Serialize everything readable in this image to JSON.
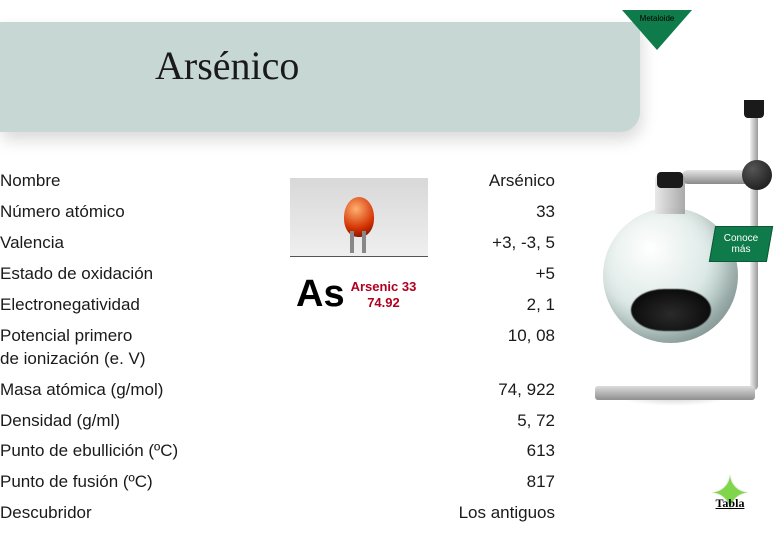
{
  "colors": {
    "header_band": "#c6d7d4",
    "badge_green": "#0f7a4a",
    "star_green": "#7fd64a",
    "text": "#1a1a1a",
    "element_red": "#b00020"
  },
  "header": {
    "title": "Arsénico",
    "badge_label": "Metaloide"
  },
  "element_card": {
    "symbol": "As",
    "meta_line1": "Arsenic 33",
    "meta_line2": "74.92"
  },
  "properties": [
    {
      "label": "Nombre",
      "value": "Arsénico"
    },
    {
      "label": "Número atómico",
      "value": "33"
    },
    {
      "label": "Valencia",
      "value": "+3, -3, 5"
    },
    {
      "label": "Estado de oxidación",
      "value": "+5"
    },
    {
      "label": "Electronegatividad",
      "value": "2, 1"
    },
    {
      "label": "Potencial primero\nde ionización (e. V)",
      "value": "10, 08"
    },
    {
      "label": "Masa atómica (g/mol)",
      "value": "74, 922"
    },
    {
      "label": "Densidad (g/ml)",
      "value": "5, 72"
    },
    {
      "label": "Punto de ebullición (ºC)",
      "value": "613"
    },
    {
      "label": "Punto de fusión (ºC)",
      "value": "817"
    },
    {
      "label": "Descubridor",
      "value": "Los antiguos"
    }
  ],
  "buttons": {
    "conoce_mas": "Conoce\nmás",
    "tabla": "Tabla"
  }
}
